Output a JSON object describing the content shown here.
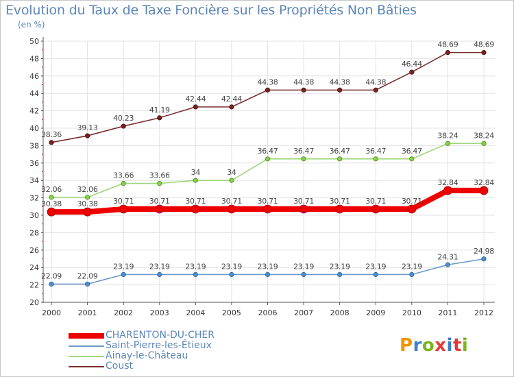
{
  "chart_title": "Evolution du Taux de Taxe Foncière sur les Propriétés Non Bâties",
  "unit_label": "(en %)",
  "logo": {
    "text": "Proxiti",
    "letters": [
      "P",
      "r",
      "o",
      "x",
      "i",
      "t",
      "i"
    ],
    "colors": [
      "#f29400",
      "#3d7fc1",
      "#7ab51d",
      "#e23b3b",
      "#3d7fc1",
      "#e23b3b",
      "#7ab51d"
    ]
  },
  "chart_data": {
    "type": "line",
    "title": "Evolution du Taux de Taxe Foncière sur les Propriétés Non Bâties",
    "ylabel": "(en %)",
    "x": [
      "2000",
      "2001",
      "2002",
      "2003",
      "2004",
      "2005",
      "2006",
      "2007",
      "2008",
      "2009",
      "2010",
      "2011",
      "2012"
    ],
    "ylim": [
      20,
      50
    ],
    "yticks": [
      20,
      22,
      24,
      26,
      28,
      30,
      32,
      34,
      36,
      38,
      40,
      42,
      44,
      46,
      48,
      50
    ],
    "grid": true,
    "legend_position": "bottom-left",
    "series": [
      {
        "name": "CHARENTON-DU-CHER",
        "color": "#ee0000",
        "values": [
          30.38,
          30.38,
          30.71,
          30.71,
          30.71,
          30.71,
          30.71,
          30.71,
          30.71,
          30.71,
          30.71,
          32.84,
          32.84
        ],
        "labels": [
          "30.38",
          "30.38",
          "30.71",
          "30.71",
          "30.71",
          "30.71",
          "30.71",
          "30.71",
          "30.71",
          "30.71",
          "30.71",
          "32.84",
          "32.84"
        ]
      },
      {
        "name": "Saint-Pierre-les-Étieux",
        "color": "#6b9bc8",
        "values": [
          22.09,
          22.09,
          23.19,
          23.19,
          23.19,
          23.19,
          23.19,
          23.19,
          23.19,
          23.19,
          23.19,
          24.31,
          24.98
        ],
        "labels": [
          "22.09",
          "22.09",
          "23.19",
          "23.19",
          "23.19",
          "23.19",
          "23.19",
          "23.19",
          "23.19",
          "23.19",
          "23.19",
          "24.31",
          "24.98"
        ]
      },
      {
        "name": "Ainay-le-Château",
        "color": "#9fd67a",
        "values": [
          32.06,
          32.06,
          33.66,
          33.66,
          34,
          34,
          36.47,
          36.47,
          36.47,
          36.47,
          36.47,
          38.24,
          38.24
        ],
        "labels": [
          "32.06",
          "32.06",
          "33.66",
          "33.66",
          "34",
          "34",
          "36.47",
          "36.47",
          "36.47",
          "36.47",
          "36.47",
          "38.24",
          "38.24"
        ]
      },
      {
        "name": "Coust",
        "color": "#7a2e2e",
        "values": [
          38.36,
          39.13,
          40.23,
          41.19,
          42.44,
          42.44,
          44.38,
          44.38,
          44.38,
          44.38,
          46.44,
          48.69,
          48.69
        ],
        "labels": [
          "38.36",
          "39.13",
          "40.23",
          "41.19",
          "42.44",
          "42.44",
          "44.38",
          "44.38",
          "44.38",
          "44.38",
          "46.44",
          "48.69",
          "48.69"
        ]
      }
    ]
  }
}
